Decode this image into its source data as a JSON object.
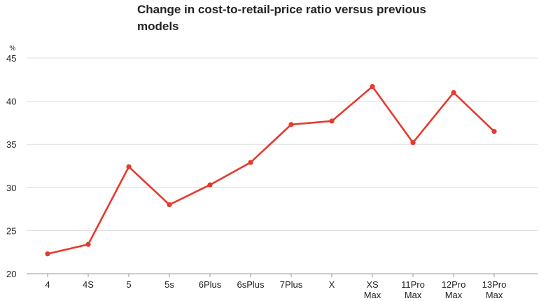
{
  "chart_data": {
    "type": "line",
    "title": "Change in cost-to-retail-price ratio versus previous models",
    "ylabel": "%",
    "xlabel": "",
    "categories": [
      [
        "4"
      ],
      [
        "4S"
      ],
      [
        "5"
      ],
      [
        "5s"
      ],
      [
        "6Plus"
      ],
      [
        "6sPlus"
      ],
      [
        "7Plus"
      ],
      [
        "X"
      ],
      [
        "XS",
        "Max"
      ],
      [
        "11Pro",
        "Max"
      ],
      [
        "12Pro",
        "Max"
      ],
      [
        "13Pro",
        "Max"
      ]
    ],
    "series": [
      {
        "values": [
          22.3,
          23.4,
          32.4,
          28.0,
          30.3,
          32.9,
          37.3,
          37.7,
          41.7,
          35.2,
          41.0,
          36.5
        ]
      }
    ],
    "ylim": [
      20,
      45
    ],
    "yticks": [
      20,
      25,
      30,
      35,
      40,
      45
    ],
    "grid": true,
    "line_color": "#e53a2e",
    "grid_color": "#dddddd",
    "axis_color": "#999999"
  }
}
